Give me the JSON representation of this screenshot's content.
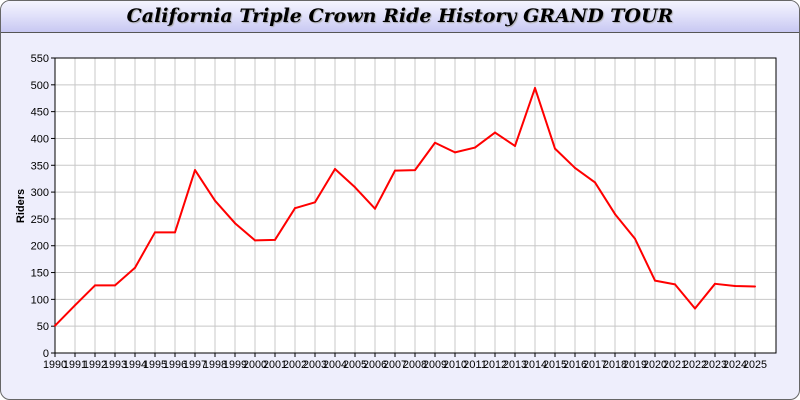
{
  "chart_data": {
    "type": "line",
    "title": "California Triple Crown Ride History GRAND TOUR",
    "xlabel": "",
    "ylabel": "Riders",
    "ylim": [
      0,
      550
    ],
    "yticks": [
      0,
      50,
      100,
      150,
      200,
      250,
      300,
      350,
      400,
      450,
      500,
      550
    ],
    "grid": true,
    "x": [
      "1990",
      "1991",
      "1992",
      "1993",
      "1994",
      "1995",
      "1996",
      "1997",
      "1998",
      "1999",
      "2000",
      "2001",
      "2002",
      "2003",
      "2004",
      "2005",
      "2006",
      "2007",
      "2008",
      "2009",
      "2010",
      "2011",
      "2012",
      "2013",
      "2014",
      "2015",
      "2016",
      "2017",
      "2018",
      "2019",
      "2020",
      "2021",
      "2022",
      "2023",
      "2024",
      "2025"
    ],
    "series": [
      {
        "color": "#ff0000",
        "values": [
          51,
          89,
          126,
          126,
          159,
          225,
          225,
          341,
          284,
          242,
          210,
          211,
          270,
          281,
          343,
          309,
          269,
          340,
          341,
          392,
          374,
          383,
          411,
          386,
          494,
          381,
          345,
          318,
          259,
          213,
          135,
          128,
          83,
          129,
          125,
          124
        ]
      }
    ]
  }
}
